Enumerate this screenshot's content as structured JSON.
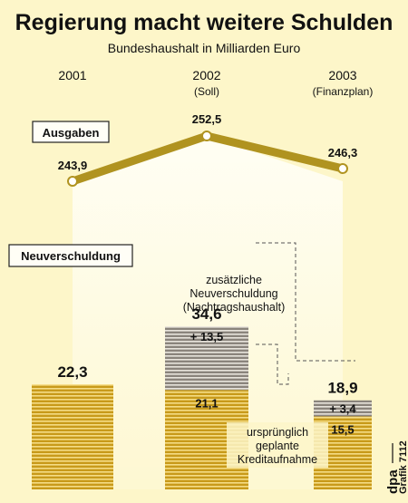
{
  "title": "Regierung macht weitere Schulden",
  "subtitle": "Bundeshaushalt in Milliarden Euro",
  "years": [
    {
      "label": "2001",
      "note": ""
    },
    {
      "label": "2002",
      "note": "(Soll)"
    },
    {
      "label": "2003",
      "note": "(Finanzplan)"
    }
  ],
  "chart_data": [
    {
      "type": "line",
      "title": "Ausgaben",
      "categories": [
        "2001",
        "2002",
        "2003"
      ],
      "values": [
        243.9,
        252.5,
        246.3
      ],
      "value_labels": [
        "243,9",
        "252,5",
        "246,3"
      ]
    },
    {
      "type": "bar",
      "title": "Neuverschuldung",
      "categories": [
        "2001",
        "2002",
        "2003"
      ],
      "totals": [
        22.3,
        34.6,
        18.9
      ],
      "total_labels": [
        "22,3",
        "34,6",
        "18,9"
      ],
      "series": [
        {
          "name": "ursprünglich geplante Kreditaufnahme",
          "values": [
            22.3,
            21.1,
            15.5
          ],
          "labels": [
            "",
            "21,1",
            "15,5"
          ]
        },
        {
          "name": "zusätzliche Neuverschuldung (Nachtragshaushalt)",
          "values": [
            0,
            13.5,
            3.4
          ],
          "labels": [
            "",
            "+ 13,5",
            "+ 3,4"
          ]
        }
      ]
    }
  ],
  "labels": {
    "ausgaben": "Ausgaben",
    "neuverschuldung": "Neuverschuldung",
    "zusatz": [
      "zusätzliche",
      "Neuverschuldung",
      "(Nachtragshaushalt)"
    ],
    "geplant": [
      "ursprünglich",
      "geplante",
      "Kreditaufnahme"
    ]
  },
  "credit": {
    "agency": "dpa",
    "grafik": "Grafik 7112"
  },
  "colors": {
    "background": "#fdf6c9",
    "line": "#b09320",
    "bar_gold": "#c89a1a",
    "bar_stripe": "#f5dd86",
    "bar_grey": "#8a847c",
    "bar_grey_stripe": "#e8e4dc"
  }
}
